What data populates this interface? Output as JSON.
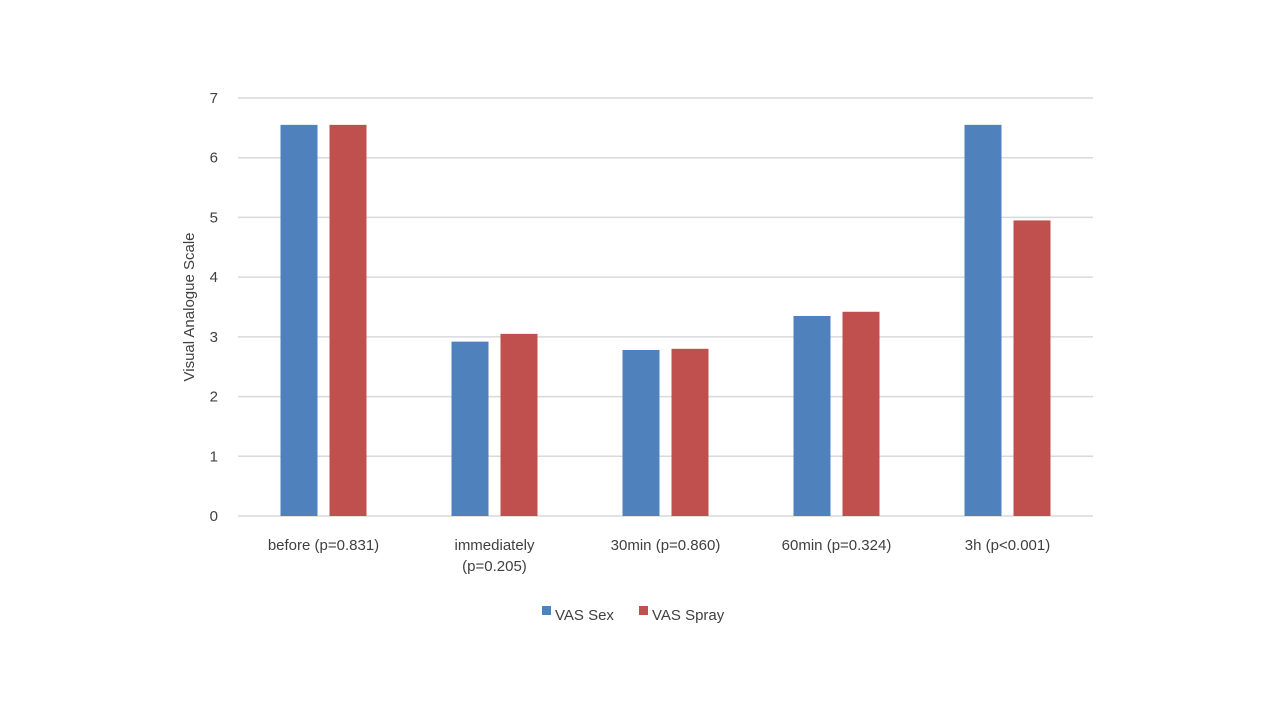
{
  "chart_data": {
    "type": "bar",
    "title": "",
    "xlabel": "",
    "ylabel": "Visual Analogue Scale",
    "ylim": [
      0,
      7
    ],
    "yticks": [
      0,
      1,
      2,
      3,
      4,
      5,
      6,
      7
    ],
    "grid": true,
    "legend_position": "bottom",
    "categories": [
      [
        "before (p=0.831)"
      ],
      [
        "immediately",
        "(p=0.205)"
      ],
      [
        "30min (p=0.860)"
      ],
      [
        "60min (p=0.324)"
      ],
      [
        "3h (p<0.001)"
      ]
    ],
    "series": [
      {
        "name": "VAS Sex",
        "color": "#4f81bd",
        "values": [
          6.55,
          2.92,
          2.78,
          3.35,
          6.55
        ]
      },
      {
        "name": "VAS Spray",
        "color": "#c0504d",
        "values": [
          6.55,
          3.05,
          2.8,
          3.42,
          4.95
        ]
      }
    ]
  }
}
